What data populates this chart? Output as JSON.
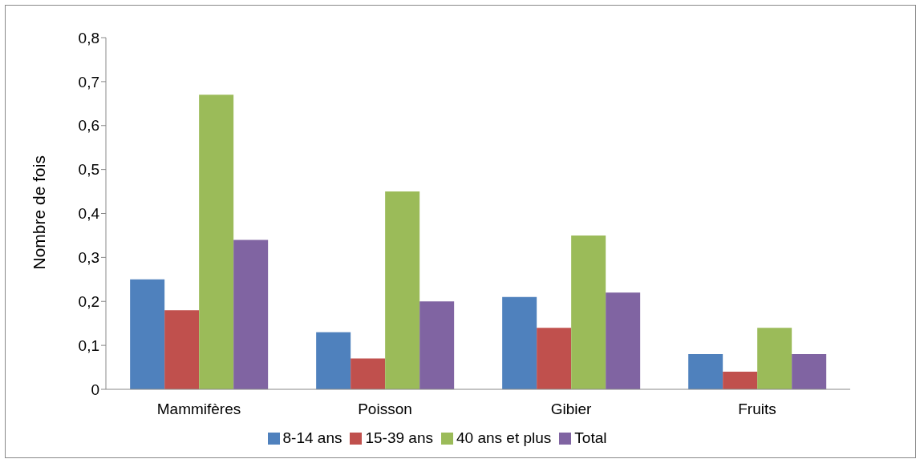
{
  "chart_data": {
    "type": "bar",
    "ylabel": "Nombre de fois",
    "categories": [
      "Mammifères",
      "Poisson",
      "Gibier",
      "Fruits"
    ],
    "series": [
      {
        "name": "8-14 ans",
        "color": "#4f81bd",
        "values": [
          0.25,
          0.13,
          0.21,
          0.08
        ]
      },
      {
        "name": "15-39 ans",
        "color": "#c0504d",
        "values": [
          0.18,
          0.07,
          0.14,
          0.04
        ]
      },
      {
        "name": "40 ans et plus",
        "color": "#9bbb59",
        "values": [
          0.67,
          0.45,
          0.35,
          0.14
        ]
      },
      {
        "name": "Total",
        "color": "#8064a2",
        "values": [
          0.34,
          0.2,
          0.22,
          0.08
        ]
      }
    ],
    "ylim": [
      0,
      0.8
    ],
    "yticks": [
      0,
      {
        "value": 0.1,
        "label": "0,1"
      },
      {
        "value": 0.2,
        "label": "0,2"
      },
      {
        "value": 0.3,
        "label": "0,3"
      },
      {
        "value": 0.4,
        "label": "0,4"
      },
      {
        "value": 0.5,
        "label": "0,5"
      },
      {
        "value": 0.6,
        "label": "0,6"
      },
      {
        "value": 0.7,
        "label": "0,7"
      },
      {
        "value": 0.8,
        "label": "0,8"
      }
    ],
    "grid": false,
    "legend": "bottom"
  }
}
